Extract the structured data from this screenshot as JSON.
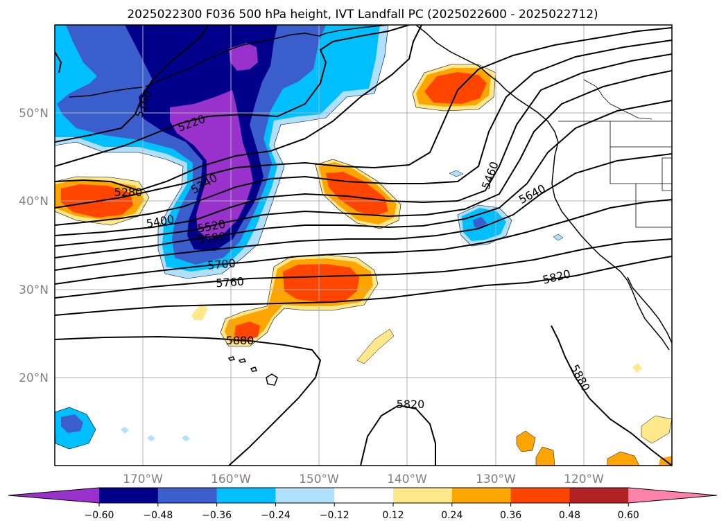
{
  "title": "2025022300 F036 500 hPa height, IVT Landfall PC (2025022600 - 2025022712)",
  "map": {
    "lat_range": [
      10,
      60
    ],
    "lon_range": [
      -180,
      -110
    ],
    "lat_labels": [
      "50°N",
      "40°N",
      "30°N",
      "20°N"
    ],
    "lon_labels": [
      "170°W",
      "160°W",
      "150°W",
      "140°W",
      "130°W",
      "120°W"
    ],
    "grid": true
  },
  "height_contour_labels": [
    "5160",
    "5220",
    "5280",
    "5340",
    "5400",
    "5520",
    "5580",
    "5460",
    "5640",
    "5700",
    "5760",
    "5820",
    "5880",
    "5880",
    "5820"
  ],
  "colorbar": {
    "ticks": [
      "−0.60",
      "−0.48",
      "−0.36",
      "−0.24",
      "−0.12",
      "0.12",
      "0.24",
      "0.36",
      "0.48",
      "0.60"
    ],
    "colors": [
      "#9932cc",
      "#00008b",
      "#3a5fcd",
      "#00bfff",
      "#b0e0ff",
      "#ffffff",
      "#ffe88a",
      "#ffa500",
      "#ff4500",
      "#b22222",
      "#ff82ab"
    ],
    "extend": "both"
  },
  "colors": {
    "contour": "#000000",
    "grid": "#b0b0b0",
    "tick_label": "#808080"
  }
}
